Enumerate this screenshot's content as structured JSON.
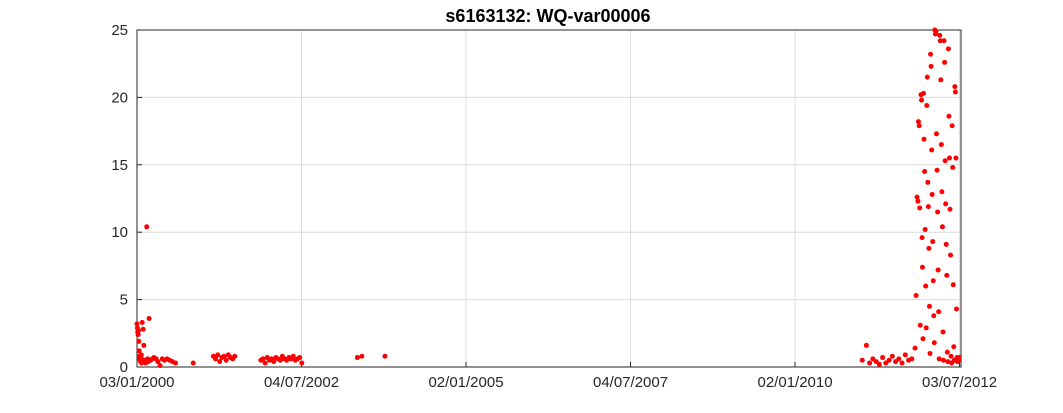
{
  "chart_data": {
    "type": "scatter",
    "title": "s6163132: WQ-var00006",
    "xlabel": "",
    "ylabel": "",
    "x_type": "date",
    "xlim": [
      "2000-01-03",
      "2012-07-11"
    ],
    "ylim": [
      0,
      25
    ],
    "x_ticks": [
      {
        "date": "2000-01-03",
        "label": "03/01/2000"
      },
      {
        "date": "2002-07-04",
        "label": "04/07/2002"
      },
      {
        "date": "2005-01-02",
        "label": "02/01/2005"
      },
      {
        "date": "2007-07-04",
        "label": "04/07/2007"
      },
      {
        "date": "2010-01-02",
        "label": "02/01/2010"
      },
      {
        "date": "2012-07-03",
        "label": "03/07/2012"
      }
    ],
    "y_ticks": [
      0,
      5,
      10,
      15,
      20,
      25
    ],
    "grid": true,
    "marker_color": "#ff0000",
    "series": [
      {
        "points": [
          [
            "2000-01-03",
            3.2
          ],
          [
            "2000-01-05",
            2.9
          ],
          [
            "2000-01-07",
            2.6
          ],
          [
            "2000-01-09",
            2.4
          ],
          [
            "2000-01-11",
            2.7
          ],
          [
            "2000-01-13",
            1.9
          ],
          [
            "2000-01-15",
            1.2
          ],
          [
            "2000-01-17",
            0.8
          ],
          [
            "2000-01-19",
            0.6
          ],
          [
            "2000-01-21",
            0.5
          ],
          [
            "2000-01-23",
            0.4
          ],
          [
            "2000-01-25",
            0.7
          ],
          [
            "2000-01-27",
            0.9
          ],
          [
            "2000-01-29",
            0.3
          ],
          [
            "2000-02-01",
            3.3
          ],
          [
            "2000-02-06",
            2.8
          ],
          [
            "2000-02-10",
            1.6
          ],
          [
            "2000-02-14",
            0.5
          ],
          [
            "2000-02-20",
            0.3
          ],
          [
            "2000-02-26",
            10.4
          ],
          [
            "2000-03-02",
            0.6
          ],
          [
            "2000-03-05",
            0.4
          ],
          [
            "2000-03-10",
            3.6
          ],
          [
            "2000-03-18",
            0.5
          ],
          [
            "2000-03-28",
            0.6
          ],
          [
            "2000-04-06",
            0.7
          ],
          [
            "2000-04-18",
            0.6
          ],
          [
            "2000-04-28",
            0.4
          ],
          [
            "2000-05-10",
            0.1
          ],
          [
            "2000-05-22",
            0.6
          ],
          [
            "2000-06-04",
            0.5
          ],
          [
            "2000-06-18",
            0.6
          ],
          [
            "2000-07-02",
            0.5
          ],
          [
            "2000-07-18",
            0.4
          ],
          [
            "2000-08-04",
            0.3
          ],
          [
            "2000-11-10",
            0.3
          ],
          [
            "2001-03-02",
            0.8
          ],
          [
            "2001-03-14",
            0.6
          ],
          [
            "2001-03-26",
            0.9
          ],
          [
            "2001-04-06",
            0.4
          ],
          [
            "2001-04-18",
            0.7
          ],
          [
            "2001-04-30",
            0.8
          ],
          [
            "2001-05-12",
            0.5
          ],
          [
            "2001-05-24",
            0.9
          ],
          [
            "2001-06-05",
            0.7
          ],
          [
            "2001-06-17",
            0.6
          ],
          [
            "2001-06-29",
            0.8
          ],
          [
            "2001-11-20",
            0.5
          ],
          [
            "2001-12-02",
            0.6
          ],
          [
            "2001-12-14",
            0.3
          ],
          [
            "2001-12-26",
            0.7
          ],
          [
            "2002-01-07",
            0.5
          ],
          [
            "2002-01-19",
            0.6
          ],
          [
            "2002-01-31",
            0.4
          ],
          [
            "2002-02-12",
            0.7
          ],
          [
            "2002-02-24",
            0.6
          ],
          [
            "2002-03-08",
            0.5
          ],
          [
            "2002-03-20",
            0.8
          ],
          [
            "2002-04-01",
            0.6
          ],
          [
            "2002-04-13",
            0.5
          ],
          [
            "2002-04-25",
            0.7
          ],
          [
            "2002-05-07",
            0.6
          ],
          [
            "2002-05-19",
            0.8
          ],
          [
            "2002-05-31",
            0.5
          ],
          [
            "2002-06-12",
            0.6
          ],
          [
            "2002-06-24",
            0.7
          ],
          [
            "2002-07-06",
            0.3
          ],
          [
            "2003-05-10",
            0.7
          ],
          [
            "2003-06-04",
            0.8
          ],
          [
            "2003-10-10",
            0.8
          ],
          [
            "2011-01-10",
            0.5
          ],
          [
            "2011-02-02",
            1.6
          ],
          [
            "2011-02-20",
            0.3
          ],
          [
            "2011-03-10",
            0.6
          ],
          [
            "2011-03-28",
            0.4
          ],
          [
            "2011-04-15",
            0.2
          ],
          [
            "2011-05-03",
            0.7
          ],
          [
            "2011-05-21",
            0.3
          ],
          [
            "2011-06-08",
            0.5
          ],
          [
            "2011-06-26",
            0.8
          ],
          [
            "2011-07-14",
            0.4
          ],
          [
            "2011-08-01",
            0.6
          ],
          [
            "2011-08-19",
            0.3
          ],
          [
            "2011-09-06",
            0.9
          ],
          [
            "2011-09-24",
            0.5
          ],
          [
            "2011-10-12",
            0.6
          ],
          [
            "2011-10-30",
            1.4
          ],
          [
            "2011-11-05",
            5.3
          ],
          [
            "2011-11-10",
            12.6
          ],
          [
            "2011-11-15",
            12.3
          ],
          [
            "2011-11-18",
            18.2
          ],
          [
            "2011-11-22",
            17.9
          ],
          [
            "2011-11-25",
            11.8
          ],
          [
            "2011-11-28",
            3.1
          ],
          [
            "2011-12-02",
            20.2
          ],
          [
            "2011-12-05",
            19.8
          ],
          [
            "2011-12-08",
            9.6
          ],
          [
            "2011-12-10",
            7.4
          ],
          [
            "2011-12-13",
            2.1
          ],
          [
            "2011-12-16",
            20.3
          ],
          [
            "2011-12-19",
            16.9
          ],
          [
            "2011-12-22",
            14.5
          ],
          [
            "2011-12-25",
            10.2
          ],
          [
            "2011-12-28",
            6.0
          ],
          [
            "2011-12-31",
            2.9
          ],
          [
            "2012-01-03",
            19.4
          ],
          [
            "2012-01-06",
            21.5
          ],
          [
            "2012-01-09",
            13.7
          ],
          [
            "2012-01-12",
            11.9
          ],
          [
            "2012-01-15",
            8.8
          ],
          [
            "2012-01-18",
            4.5
          ],
          [
            "2012-01-21",
            1.0
          ],
          [
            "2012-01-24",
            23.2
          ],
          [
            "2012-01-27",
            22.3
          ],
          [
            "2012-01-30",
            16.1
          ],
          [
            "2012-02-02",
            12.8
          ],
          [
            "2012-02-05",
            9.3
          ],
          [
            "2012-02-08",
            6.4
          ],
          [
            "2012-02-11",
            3.8
          ],
          [
            "2012-02-14",
            1.8
          ],
          [
            "2012-02-17",
            25.0
          ],
          [
            "2012-02-20",
            24.7
          ],
          [
            "2012-02-23",
            24.9
          ],
          [
            "2012-02-26",
            17.3
          ],
          [
            "2012-02-29",
            14.6
          ],
          [
            "2012-03-03",
            11.5
          ],
          [
            "2012-03-06",
            7.2
          ],
          [
            "2012-03-09",
            4.1
          ],
          [
            "2012-03-12",
            0.6
          ],
          [
            "2012-03-15",
            24.6
          ],
          [
            "2012-03-18",
            24.2
          ],
          [
            "2012-03-21",
            21.3
          ],
          [
            "2012-03-24",
            16.5
          ],
          [
            "2012-03-27",
            13.0
          ],
          [
            "2012-03-30",
            10.4
          ],
          [
            "2012-04-02",
            2.6
          ],
          [
            "2012-04-05",
            0.5
          ],
          [
            "2012-04-08",
            24.2
          ],
          [
            "2012-04-11",
            22.6
          ],
          [
            "2012-04-14",
            15.3
          ],
          [
            "2012-04-17",
            12.1
          ],
          [
            "2012-04-20",
            9.1
          ],
          [
            "2012-04-23",
            6.8
          ],
          [
            "2012-04-26",
            1.1
          ],
          [
            "2012-04-29",
            0.4
          ],
          [
            "2012-05-02",
            23.6
          ],
          [
            "2012-05-05",
            18.6
          ],
          [
            "2012-05-08",
            15.5
          ],
          [
            "2012-05-11",
            11.7
          ],
          [
            "2012-05-14",
            8.3
          ],
          [
            "2012-05-17",
            0.8
          ],
          [
            "2012-05-20",
            0.3
          ],
          [
            "2012-05-23",
            17.9
          ],
          [
            "2012-05-26",
            14.8
          ],
          [
            "2012-05-29",
            6.1
          ],
          [
            "2012-06-01",
            1.5
          ],
          [
            "2012-06-04",
            0.5
          ],
          [
            "2012-06-07",
            20.8
          ],
          [
            "2012-06-10",
            20.4
          ],
          [
            "2012-06-13",
            15.5
          ],
          [
            "2012-06-16",
            4.3
          ],
          [
            "2012-06-19",
            0.7
          ],
          [
            "2012-06-22",
            0.4
          ],
          [
            "2012-06-25",
            0.6
          ],
          [
            "2012-06-28",
            0.5
          ],
          [
            "2012-07-01",
            0.7
          ]
        ]
      }
    ]
  }
}
